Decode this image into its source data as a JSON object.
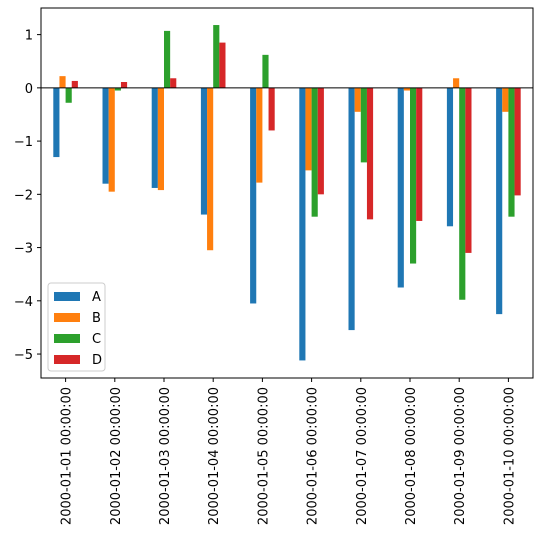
{
  "chart_data": {
    "type": "bar",
    "categories": [
      "2000-01-01 00:00:00",
      "2000-01-02 00:00:00",
      "2000-01-03 00:00:00",
      "2000-01-04 00:00:00",
      "2000-01-05 00:00:00",
      "2000-01-06 00:00:00",
      "2000-01-07 00:00:00",
      "2000-01-08 00:00:00",
      "2000-01-09 00:00:00",
      "2000-01-10 00:00:00"
    ],
    "series": [
      {
        "name": "A",
        "color": "#1f77b4",
        "values": [
          -1.3,
          -1.8,
          -1.88,
          -2.38,
          -4.05,
          -5.12,
          -4.55,
          -3.75,
          -2.6,
          -4.25
        ]
      },
      {
        "name": "B",
        "color": "#ff7f0e",
        "values": [
          0.22,
          -1.95,
          -1.92,
          -3.05,
          -1.78,
          -1.55,
          -0.45,
          -0.05,
          0.18,
          -0.45
        ]
      },
      {
        "name": "C",
        "color": "#2ca02c",
        "values": [
          -0.28,
          -0.05,
          1.07,
          1.18,
          0.62,
          -2.42,
          -1.4,
          -3.3,
          -3.98,
          -2.42
        ]
      },
      {
        "name": "D",
        "color": "#d62728",
        "values": [
          0.13,
          0.11,
          0.18,
          0.85,
          -0.8,
          -2.0,
          -2.47,
          -2.5,
          -3.1,
          -2.02
        ]
      }
    ],
    "title": "",
    "xlabel": "",
    "ylabel": "",
    "ylim": [
      -5.45,
      1.5
    ],
    "yticks": [
      1,
      0,
      -1,
      -2,
      -3,
      -4,
      -5
    ],
    "ytick_labels": [
      "1",
      "0",
      "−1",
      "−2",
      "−3",
      "−4",
      "−5"
    ],
    "legend_position": "lower-left",
    "grid": false
  }
}
